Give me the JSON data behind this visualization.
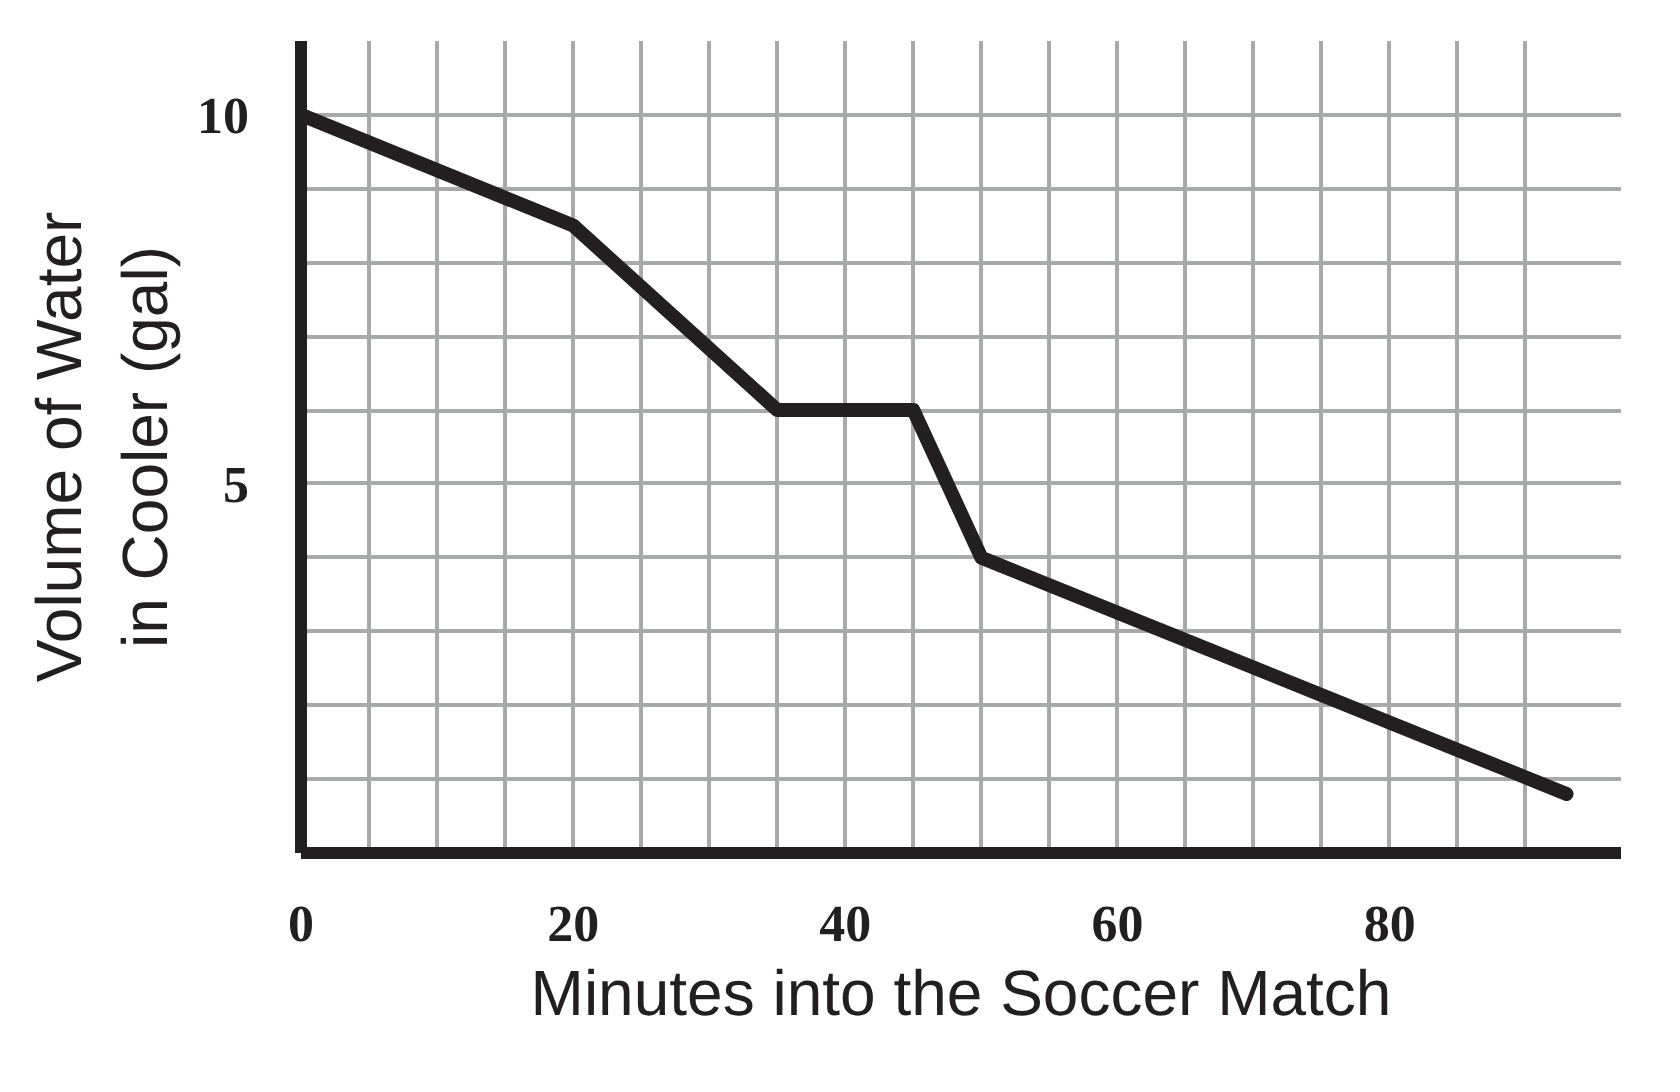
{
  "chart_data": {
    "type": "line",
    "xlabel": "Minutes into the Soccer Match",
    "ylabel": "Volume of Water\nin Cooler (gal)",
    "x": [
      0,
      20,
      35,
      45,
      50,
      93
    ],
    "series": [
      {
        "color": "#231f20",
        "values": [
          10,
          8.5,
          6,
          6,
          4,
          0.8
        ]
      }
    ],
    "xlim": [
      0,
      97
    ],
    "ylim": [
      0,
      11
    ],
    "xticks": [
      0,
      {
        "value": 5,
        "label": null
      },
      {
        "value": 10,
        "label": null
      },
      {
        "value": 15,
        "label": null
      },
      20,
      {
        "value": 25,
        "label": null
      },
      {
        "value": 30,
        "label": null
      },
      {
        "value": 35,
        "label": null
      },
      40,
      {
        "value": 45,
        "label": null
      },
      {
        "value": 50,
        "label": null
      },
      {
        "value": 55,
        "label": null
      },
      60,
      {
        "value": 65,
        "label": null
      },
      {
        "value": 70,
        "label": null
      },
      {
        "value": 75,
        "label": null
      },
      80,
      {
        "value": 85,
        "label": null
      },
      {
        "value": 90,
        "label": null
      }
    ],
    "yticks": [
      {
        "value": 1,
        "label": null
      },
      {
        "value": 2,
        "label": null
      },
      {
        "value": 3,
        "label": null
      },
      {
        "value": 4,
        "label": null
      },
      5,
      {
        "value": 6,
        "label": null
      },
      {
        "value": 7,
        "label": null
      },
      {
        "value": 8,
        "label": null
      },
      {
        "value": 9,
        "label": null
      },
      10
    ],
    "grid": true,
    "marker": "none",
    "line_style": "solid"
  }
}
